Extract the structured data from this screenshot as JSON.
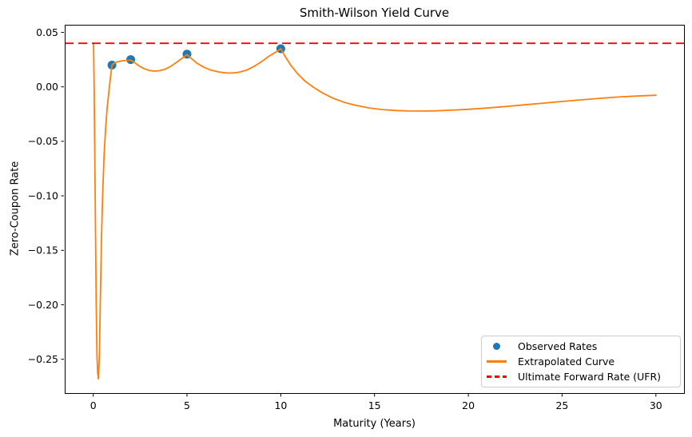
{
  "chart_data": {
    "type": "line",
    "title": "Smith-Wilson Yield Curve",
    "xlabel": "Maturity (Years)",
    "ylabel": "Zero-Coupon Rate",
    "xlim": [
      -1.52,
      31.5
    ],
    "ylim": [
      -0.281,
      0.057
    ],
    "x_ticks": [
      0,
      5,
      10,
      15,
      20,
      25,
      30
    ],
    "x_tick_labels": [
      "0",
      "5",
      "10",
      "15",
      "20",
      "25",
      "30"
    ],
    "y_ticks": [
      0.05,
      0.0,
      -0.05,
      -0.1,
      -0.15,
      -0.2,
      -0.25
    ],
    "y_tick_labels": [
      "0.05",
      "0.00",
      "−0.05",
      "−0.10",
      "−0.15",
      "−0.20",
      "−0.25"
    ],
    "grid": false,
    "legend_position": "lower right",
    "ufr": 0.04,
    "observed": {
      "maturities": [
        1,
        2,
        5,
        10
      ],
      "rates": [
        0.02,
        0.025,
        0.03,
        0.035
      ]
    },
    "series": [
      {
        "name": "Observed Rates",
        "type": "scatter",
        "color": "#1f77b4",
        "x": [
          1,
          2,
          5,
          10
        ],
        "y": [
          0.02,
          0.025,
          0.03,
          0.035
        ]
      },
      {
        "name": "Extrapolated Curve",
        "type": "line",
        "color": "#ff7f0e",
        "x": [
          0.02,
          0.05,
          0.08,
          0.12,
          0.16,
          0.2,
          0.24,
          0.28,
          0.33,
          0.38,
          0.44,
          0.5,
          0.58,
          0.66,
          0.74,
          0.82,
          0.9,
          0.95,
          1.0,
          1.1,
          1.25,
          1.5,
          1.75,
          2.0,
          2.2,
          2.45,
          2.7,
          3.0,
          3.25,
          3.5,
          3.8,
          4.1,
          4.4,
          4.7,
          5.0,
          5.25,
          5.55,
          5.9,
          6.3,
          6.7,
          7.1,
          7.45,
          7.8,
          8.2,
          8.6,
          9.0,
          9.4,
          9.7,
          10.0,
          10.25,
          10.55,
          10.9,
          11.3,
          11.75,
          12.25,
          12.8,
          13.4,
          14.0,
          14.7,
          15.4,
          16.1,
          16.8,
          17.5,
          18.3,
          19.1,
          20.0,
          21.0,
          22.0,
          23.0,
          24.0,
          25.0,
          26.0,
          27.0,
          28.0,
          29.0,
          30.0
        ],
        "y": [
          0.04,
          0.0,
          -0.06,
          -0.13,
          -0.2,
          -0.248,
          -0.263,
          -0.268,
          -0.245,
          -0.195,
          -0.14,
          -0.1,
          -0.062,
          -0.038,
          -0.02,
          -0.007,
          0.006,
          0.013,
          0.02,
          0.0215,
          0.0228,
          0.0238,
          0.0243,
          0.0245,
          0.0223,
          0.0192,
          0.0168,
          0.015,
          0.0145,
          0.0148,
          0.016,
          0.0185,
          0.022,
          0.0258,
          0.0295,
          0.0258,
          0.0215,
          0.018,
          0.0153,
          0.0137,
          0.0128,
          0.0127,
          0.0135,
          0.0155,
          0.019,
          0.0235,
          0.0285,
          0.0315,
          0.035,
          0.0275,
          0.0195,
          0.012,
          0.0052,
          -0.0005,
          -0.0058,
          -0.0105,
          -0.0143,
          -0.017,
          -0.0193,
          -0.0208,
          -0.0217,
          -0.0221,
          -0.0222,
          -0.022,
          -0.0214,
          -0.0206,
          -0.0194,
          -0.018,
          -0.0165,
          -0.0149,
          -0.0134,
          -0.0119,
          -0.0105,
          -0.0093,
          -0.0084,
          -0.0077
        ]
      },
      {
        "name": "Ultimate Forward Rate (UFR)",
        "type": "hline",
        "color": "#ff0000",
        "dashed": true,
        "y": 0.04
      }
    ],
    "legend": [
      {
        "label": "Observed Rates",
        "swatch": "marker",
        "color": "#1f77b4"
      },
      {
        "label": "Extrapolated Curve",
        "swatch": "line",
        "color": "#ff7f0e"
      },
      {
        "label": "Ultimate Forward Rate (UFR)",
        "swatch": "dashed-line",
        "color": "#ff0000"
      }
    ]
  }
}
